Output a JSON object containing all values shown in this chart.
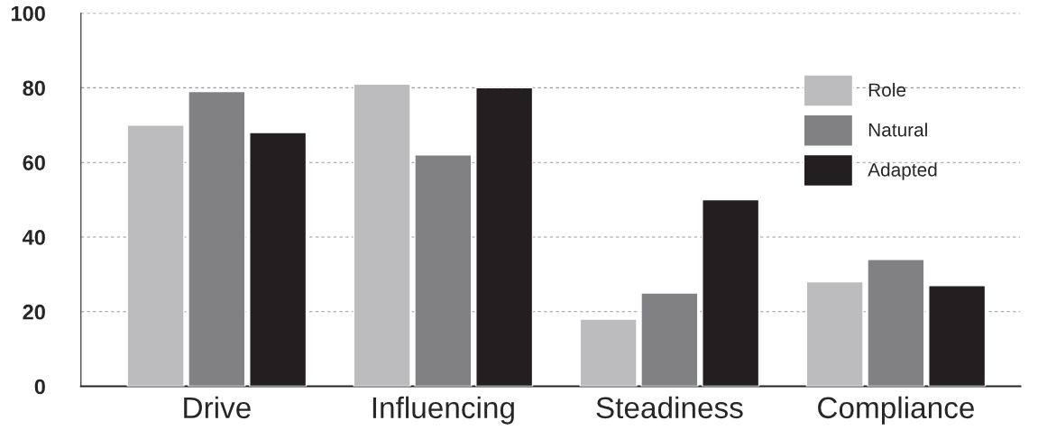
{
  "chart_data": {
    "type": "bar",
    "categories": [
      "Drive",
      "Influencing",
      "Steadiness",
      "Compliance"
    ],
    "series": [
      {
        "name": "Role",
        "color": "#bcbcbe",
        "values": [
          70,
          81,
          18,
          28
        ]
      },
      {
        "name": "Natural",
        "color": "#818183",
        "values": [
          79,
          62,
          25,
          34
        ]
      },
      {
        "name": "Adapted",
        "color": "#231f20",
        "values": [
          68,
          80,
          50,
          27
        ]
      }
    ],
    "ylim": [
      0,
      100
    ],
    "yticks": [
      0,
      20,
      40,
      60,
      80,
      100
    ],
    "grid": "y",
    "legend": "top right"
  }
}
